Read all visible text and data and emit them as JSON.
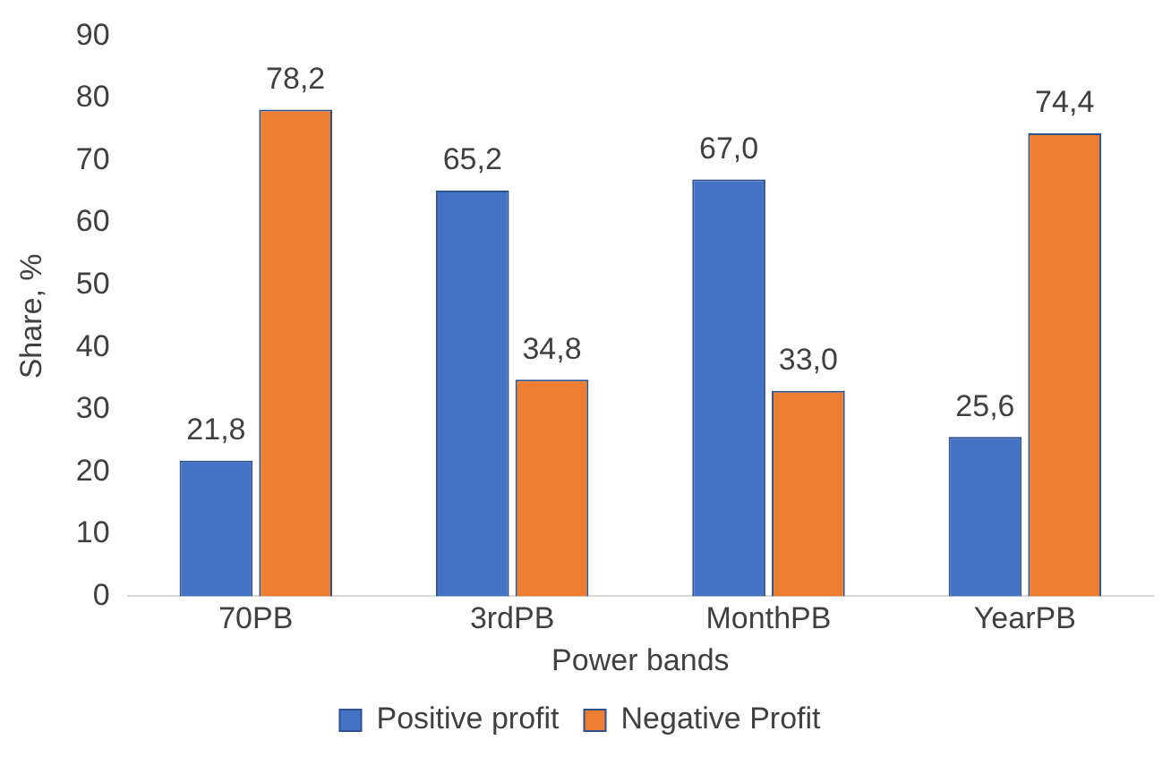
{
  "chart_data": {
    "type": "bar",
    "xlabel": "Power bands",
    "ylabel": "Share, %",
    "categories": [
      "70PB",
      "3rdPB",
      "MonthPB",
      "YearPB"
    ],
    "series": [
      {
        "name": "Positive profit",
        "color": "#4472c4",
        "values": [
          21.8,
          65.2,
          67.0,
          25.6
        ],
        "value_labels": [
          "21,8",
          "65,2",
          "67,0",
          "25,6"
        ]
      },
      {
        "name": "Negative Profit",
        "color": "#ed7d31",
        "values": [
          78.2,
          34.8,
          33.0,
          74.4
        ],
        "value_labels": [
          "78,2",
          "34,8",
          "33,0",
          "74,4"
        ]
      }
    ],
    "ylim": [
      0,
      90
    ],
    "yticks": [
      0,
      10,
      20,
      30,
      40,
      50,
      60,
      70,
      80,
      90
    ],
    "grid": false,
    "legend": "bottom"
  }
}
